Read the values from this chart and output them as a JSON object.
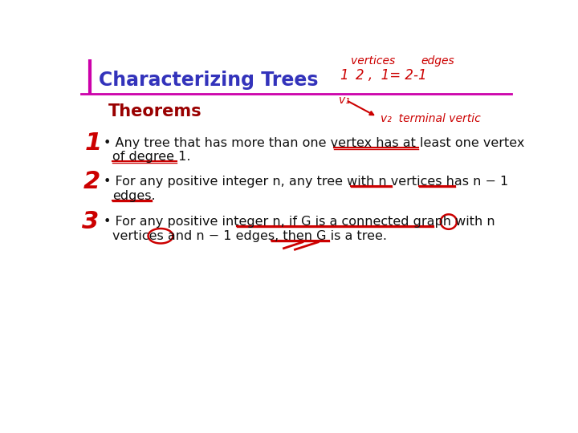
{
  "title": "Characterizing Trees",
  "subtitle": "Theorems",
  "bg_color": "#ffffff",
  "title_color": "#3333bb",
  "title_fontsize": 17,
  "subtitle_color": "#990000",
  "subtitle_fontsize": 15,
  "body_color": "#111111",
  "body_fontsize": 11.5,
  "number_color": "#cc0000",
  "number_fontsize": 22,
  "line_color": "#cc00aa",
  "theorem1_line1": "Any tree that has more than one vertex has at least one vertex",
  "theorem1_line2": "of degree 1.",
  "theorem2_line1": "For any positive integer n, any tree with n vertices has n − 1",
  "theorem2_line2": "edges.",
  "theorem3_line1": "For any positive integer n, if G is a connected graph with n",
  "theorem3_line2": "vertices and n − 1 edges, then G is a tree.",
  "handwriting_color": "#cc0000"
}
